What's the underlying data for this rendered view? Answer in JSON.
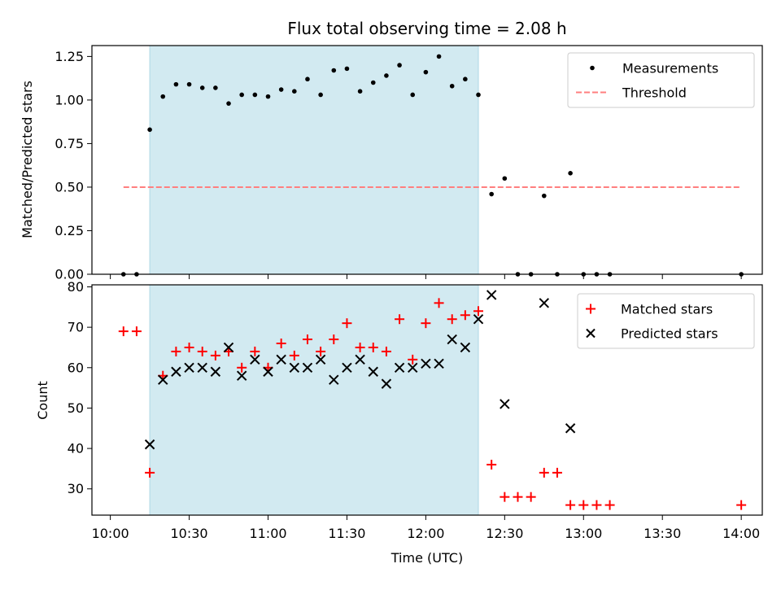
{
  "title": "Flux total observing time = 2.08 h",
  "colors": {
    "shade": "#add8e6",
    "threshold": "#ff7f7f",
    "matched": "#ff0000",
    "predicted": "#000000",
    "measurement": "#000000"
  },
  "chart_data": [
    {
      "type": "scatter",
      "ylabel": "Matched/Predicted stars",
      "ylim": [
        0,
        1.3125
      ],
      "yticks": [
        0.0,
        0.25,
        0.5,
        0.75,
        1.0,
        1.25
      ],
      "ytick_labels": [
        "0.00",
        "0.25",
        "0.50",
        "0.75",
        "1.00",
        "1.25"
      ],
      "xlim": [
        "09:53",
        "14:08"
      ],
      "shaded_interval": [
        "10:15",
        "12:20"
      ],
      "legend_position": "upper right",
      "series": [
        {
          "name": "Measurements",
          "marker": "dot",
          "points": [
            [
              "10:05",
              0.0
            ],
            [
              "10:10",
              0.0
            ],
            [
              "10:15",
              0.83
            ],
            [
              "10:20",
              1.02
            ],
            [
              "10:25",
              1.09
            ],
            [
              "10:30",
              1.09
            ],
            [
              "10:35",
              1.07
            ],
            [
              "10:40",
              1.07
            ],
            [
              "10:45",
              0.98
            ],
            [
              "10:50",
              1.03
            ],
            [
              "10:55",
              1.03
            ],
            [
              "11:00",
              1.02
            ],
            [
              "11:05",
              1.06
            ],
            [
              "11:10",
              1.05
            ],
            [
              "11:15",
              1.12
            ],
            [
              "11:20",
              1.03
            ],
            [
              "11:25",
              1.17
            ],
            [
              "11:30",
              1.18
            ],
            [
              "11:35",
              1.05
            ],
            [
              "11:40",
              1.1
            ],
            [
              "11:45",
              1.14
            ],
            [
              "11:50",
              1.2
            ],
            [
              "11:55",
              1.03
            ],
            [
              "12:00",
              1.16
            ],
            [
              "12:05",
              1.25
            ],
            [
              "12:10",
              1.08
            ],
            [
              "12:15",
              1.12
            ],
            [
              "12:20",
              1.03
            ],
            [
              "12:25",
              0.46
            ],
            [
              "12:30",
              0.55
            ],
            [
              "12:35",
              0.0
            ],
            [
              "12:40",
              0.0
            ],
            [
              "12:45",
              0.45
            ],
            [
              "12:50",
              0.0
            ],
            [
              "12:55",
              0.58
            ],
            [
              "13:00",
              0.0
            ],
            [
              "13:05",
              0.0
            ],
            [
              "13:10",
              0.0
            ],
            [
              "14:00",
              0.0
            ]
          ]
        },
        {
          "name": "Threshold",
          "style": "dashed",
          "points": [
            [
              "10:05",
              0.5
            ],
            [
              "14:00",
              0.5
            ]
          ]
        }
      ]
    },
    {
      "type": "scatter",
      "xlabel": "Time (UTC)",
      "ylabel": "Count",
      "ylim": [
        23.5,
        80.5
      ],
      "yticks": [
        30,
        40,
        50,
        60,
        70,
        80
      ],
      "xticks": [
        "10:00",
        "10:30",
        "11:00",
        "11:30",
        "12:00",
        "12:30",
        "13:00",
        "13:30",
        "14:00"
      ],
      "xlim": [
        "09:53",
        "14:08"
      ],
      "shaded_interval": [
        "10:15",
        "12:20"
      ],
      "legend_position": "upper right",
      "series": [
        {
          "name": "Matched stars",
          "marker": "plus",
          "points": [
            [
              "10:05",
              69
            ],
            [
              "10:10",
              69
            ],
            [
              "10:15",
              34
            ],
            [
              "10:20",
              58
            ],
            [
              "10:25",
              64
            ],
            [
              "10:30",
              65
            ],
            [
              "10:35",
              64
            ],
            [
              "10:40",
              63
            ],
            [
              "10:45",
              64
            ],
            [
              "10:50",
              60
            ],
            [
              "10:55",
              64
            ],
            [
              "11:00",
              60
            ],
            [
              "11:05",
              66
            ],
            [
              "11:10",
              63
            ],
            [
              "11:15",
              67
            ],
            [
              "11:20",
              64
            ],
            [
              "11:25",
              67
            ],
            [
              "11:30",
              71
            ],
            [
              "11:35",
              65
            ],
            [
              "11:40",
              65
            ],
            [
              "11:45",
              64
            ],
            [
              "11:50",
              72
            ],
            [
              "11:55",
              62
            ],
            [
              "12:00",
              71
            ],
            [
              "12:05",
              76
            ],
            [
              "12:10",
              72
            ],
            [
              "12:15",
              73
            ],
            [
              "12:20",
              74
            ],
            [
              "12:25",
              36
            ],
            [
              "12:30",
              28
            ],
            [
              "12:35",
              28
            ],
            [
              "12:40",
              28
            ],
            [
              "12:45",
              34
            ],
            [
              "12:50",
              34
            ],
            [
              "12:55",
              26
            ],
            [
              "13:00",
              26
            ],
            [
              "13:05",
              26
            ],
            [
              "13:10",
              26
            ],
            [
              "14:00",
              26
            ]
          ]
        },
        {
          "name": "Predicted stars",
          "marker": "x",
          "points": [
            [
              "10:15",
              41
            ],
            [
              "10:20",
              57
            ],
            [
              "10:25",
              59
            ],
            [
              "10:30",
              60
            ],
            [
              "10:35",
              60
            ],
            [
              "10:40",
              59
            ],
            [
              "10:45",
              65
            ],
            [
              "10:50",
              58
            ],
            [
              "10:55",
              62
            ],
            [
              "11:00",
              59
            ],
            [
              "11:05",
              62
            ],
            [
              "11:10",
              60
            ],
            [
              "11:15",
              60
            ],
            [
              "11:20",
              62
            ],
            [
              "11:25",
              57
            ],
            [
              "11:30",
              60
            ],
            [
              "11:35",
              62
            ],
            [
              "11:40",
              59
            ],
            [
              "11:45",
              56
            ],
            [
              "11:50",
              60
            ],
            [
              "11:55",
              60
            ],
            [
              "12:00",
              61
            ],
            [
              "12:05",
              61
            ],
            [
              "12:10",
              67
            ],
            [
              "12:15",
              65
            ],
            [
              "12:20",
              72
            ],
            [
              "12:25",
              78
            ],
            [
              "12:30",
              51
            ],
            [
              "12:45",
              76
            ],
            [
              "12:55",
              45
            ]
          ]
        }
      ]
    }
  ]
}
